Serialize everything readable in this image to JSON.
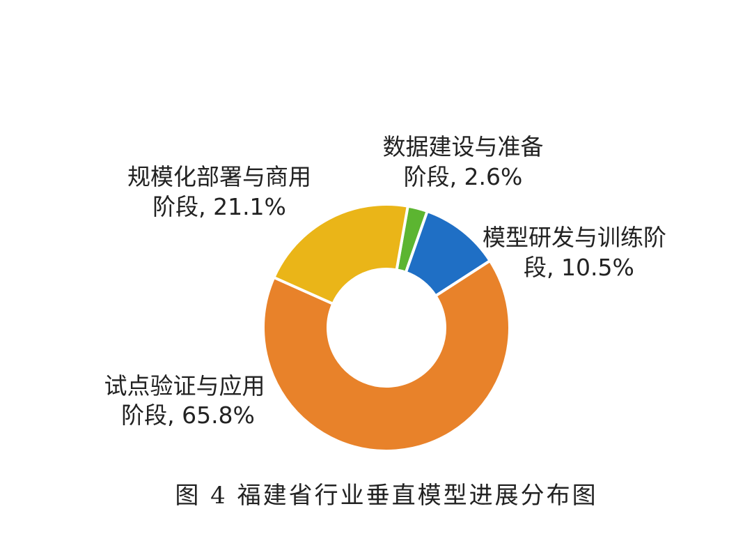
{
  "chart_data": {
    "type": "donut",
    "values": [
      2.6,
      10.5,
      65.8,
      21.1
    ],
    "value_labels": [
      [
        "数据建设与准备",
        "阶段, 2.6%"
      ],
      [
        "模型研发与训练阶",
        "段, 10.5%"
      ],
      [
        "试点验证与应用",
        "阶段, 65.8%"
      ],
      [
        "规模化部署与商用",
        "阶段, 21.1%"
      ]
    ],
    "colors": [
      "#5cb531",
      "#1f6fc5",
      "#e8822a",
      "#eab518"
    ],
    "caption": "图 4 福建省行业垂直模型进展分布图"
  }
}
